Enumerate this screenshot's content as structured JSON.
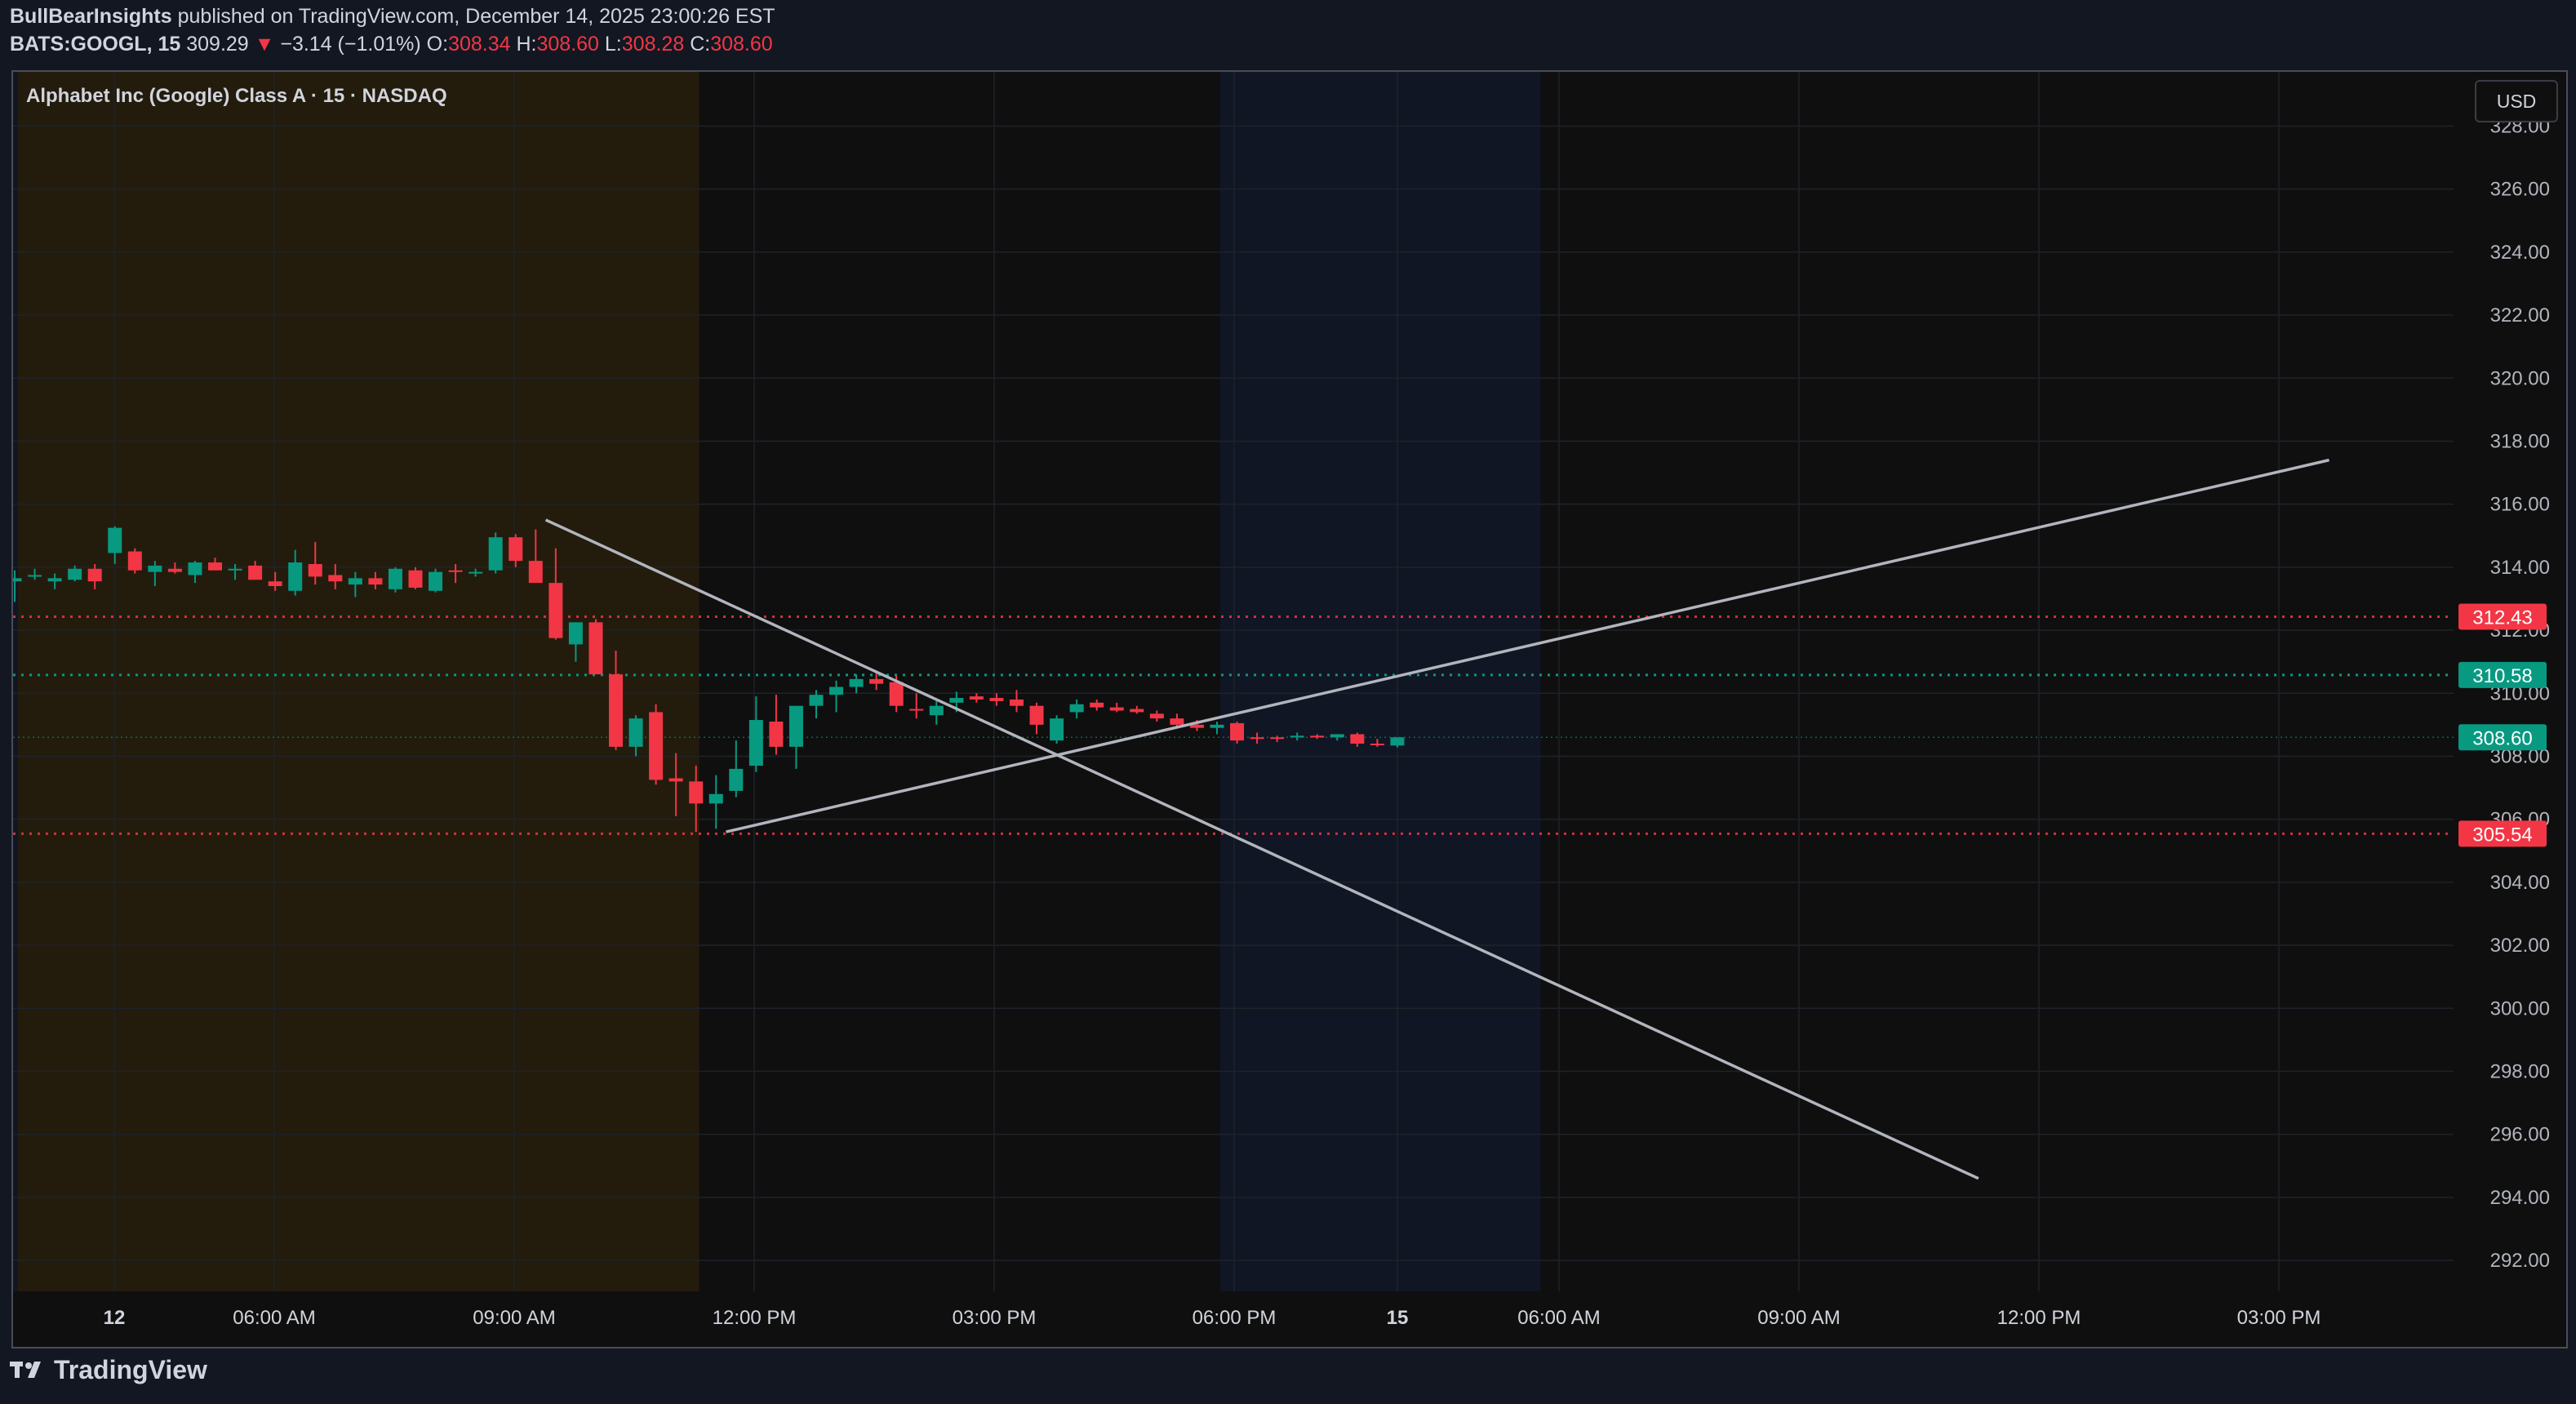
{
  "header": {
    "author": "BullBearInsights",
    "published": " published on TradingView.com, December 14, 2025 23:00:26 EST",
    "symbol": "BATS:GOOGL, 15",
    "last": "309.29",
    "arrow": "▼",
    "change": "−3.14 (−1.01%)",
    "o_label": "O:",
    "o_val": "308.34",
    "h_label": "H:",
    "h_val": "308.60",
    "l_label": "L:",
    "l_val": "308.28",
    "c_label": "C:",
    "c_val": "308.60"
  },
  "chart": {
    "title": "Alphabet Inc (Google) Class A · 15 · NASDAQ",
    "currency_button": "USD"
  },
  "footer": {
    "brand": "TradingView"
  },
  "colors": {
    "up": "#089981",
    "down": "#f23645",
    "line": "#b2b5be",
    "premarket": "#f7a600",
    "postmarket": "#2962ff"
  },
  "chart_data": {
    "type": "candlestick",
    "interval": "15",
    "ylim": [
      291,
      329
    ],
    "y_ticks": [
      "292.00",
      "294.00",
      "296.00",
      "298.00",
      "300.00",
      "302.00",
      "304.00",
      "306.00",
      "308.00",
      "310.00",
      "312.00",
      "314.00",
      "316.00",
      "318.00",
      "320.00",
      "322.00",
      "324.00",
      "326.00",
      "328.00"
    ],
    "x_ticks": [
      "12",
      "06:00 AM",
      "09:00 AM",
      "12:00 PM",
      "03:00 PM",
      "06:00 PM",
      "15",
      "06:00 AM",
      "09:00 AM",
      "12:00 PM",
      "03:00 PM"
    ],
    "price_labels": [
      {
        "text": "312.43",
        "value": 312.43,
        "color": "#f23645",
        "style": "red-dotted"
      },
      {
        "text": "310.58",
        "value": 310.58,
        "color": "#089981",
        "style": "teal-dotted"
      },
      {
        "text": "308.60",
        "value": 308.6,
        "color": "#089981",
        "style": "current"
      },
      {
        "text": "305.54",
        "value": 305.54,
        "color": "#f23645",
        "style": "red-dotted"
      }
    ],
    "sessions": [
      {
        "name": "postmarket",
        "from": "00:00",
        "to": "01:00"
      },
      {
        "name": "premarket",
        "from": "01:00",
        "to": "09:30"
      },
      {
        "name": "postmarket",
        "from": "16:00",
        "to": "20:00"
      }
    ],
    "candles": [
      {
        "o": 313.55,
        "h": 313.9,
        "l": 312.9,
        "c": 313.65
      },
      {
        "o": 313.7,
        "h": 313.95,
        "l": 313.6,
        "c": 313.75
      },
      {
        "o": 313.55,
        "h": 313.8,
        "l": 313.3,
        "c": 313.65
      },
      {
        "o": 313.6,
        "h": 314.05,
        "l": 313.55,
        "c": 313.95
      },
      {
        "o": 313.95,
        "h": 314.1,
        "l": 313.3,
        "c": 313.55
      },
      {
        "o": 314.45,
        "h": 315.3,
        "l": 314.1,
        "c": 315.25
      },
      {
        "o": 314.5,
        "h": 314.6,
        "l": 313.8,
        "c": 313.9
      },
      {
        "o": 313.85,
        "h": 314.2,
        "l": 313.4,
        "c": 314.05
      },
      {
        "o": 313.95,
        "h": 314.15,
        "l": 313.8,
        "c": 313.85
      },
      {
        "o": 313.75,
        "h": 314.2,
        "l": 313.5,
        "c": 314.15
      },
      {
        "o": 314.15,
        "h": 314.3,
        "l": 313.9,
        "c": 313.9
      },
      {
        "o": 313.9,
        "h": 314.1,
        "l": 313.6,
        "c": 313.95
      },
      {
        "o": 314.05,
        "h": 314.2,
        "l": 313.7,
        "c": 313.6
      },
      {
        "o": 313.55,
        "h": 313.85,
        "l": 313.25,
        "c": 313.4
      },
      {
        "o": 313.25,
        "h": 314.55,
        "l": 313.1,
        "c": 314.15
      },
      {
        "o": 314.1,
        "h": 314.8,
        "l": 313.45,
        "c": 313.7
      },
      {
        "o": 313.75,
        "h": 314.1,
        "l": 313.3,
        "c": 313.55
      },
      {
        "o": 313.45,
        "h": 313.85,
        "l": 313.05,
        "c": 313.65
      },
      {
        "o": 313.65,
        "h": 313.85,
        "l": 313.3,
        "c": 313.45
      },
      {
        "o": 313.3,
        "h": 314.0,
        "l": 313.2,
        "c": 313.95
      },
      {
        "o": 313.9,
        "h": 314.0,
        "l": 313.3,
        "c": 313.35
      },
      {
        "o": 313.25,
        "h": 313.95,
        "l": 313.2,
        "c": 313.85
      },
      {
        "o": 313.9,
        "h": 314.1,
        "l": 313.5,
        "c": 313.85
      },
      {
        "o": 313.8,
        "h": 313.95,
        "l": 313.7,
        "c": 313.85
      },
      {
        "o": 313.9,
        "h": 315.1,
        "l": 313.8,
        "c": 314.95
      },
      {
        "o": 314.95,
        "h": 315.05,
        "l": 314.0,
        "c": 314.2
      },
      {
        "o": 314.2,
        "h": 315.2,
        "l": 313.6,
        "c": 313.5
      },
      {
        "o": 313.5,
        "h": 314.6,
        "l": 311.7,
        "c": 311.75
      },
      {
        "o": 311.55,
        "h": 312.25,
        "l": 311.0,
        "c": 312.25
      },
      {
        "o": 312.25,
        "h": 312.35,
        "l": 310.95,
        "c": 310.6
      },
      {
        "o": 310.6,
        "h": 311.35,
        "l": 308.2,
        "c": 308.3
      },
      {
        "o": 308.3,
        "h": 309.3,
        "l": 308.0,
        "c": 309.2
      },
      {
        "o": 309.4,
        "h": 309.65,
        "l": 307.1,
        "c": 307.25
      },
      {
        "o": 307.3,
        "h": 308.1,
        "l": 306.1,
        "c": 307.2
      },
      {
        "o": 307.2,
        "h": 307.7,
        "l": 305.6,
        "c": 306.5
      },
      {
        "o": 306.5,
        "h": 307.4,
        "l": 305.7,
        "c": 306.8
      },
      {
        "o": 306.9,
        "h": 308.5,
        "l": 306.7,
        "c": 307.6
      },
      {
        "o": 307.7,
        "h": 309.9,
        "l": 307.5,
        "c": 309.15
      },
      {
        "o": 309.1,
        "h": 309.95,
        "l": 308.05,
        "c": 308.3
      },
      {
        "o": 308.3,
        "h": 309.6,
        "l": 307.6,
        "c": 309.6
      },
      {
        "o": 309.6,
        "h": 310.1,
        "l": 309.2,
        "c": 309.95
      },
      {
        "o": 309.95,
        "h": 310.4,
        "l": 309.4,
        "c": 310.2
      },
      {
        "o": 310.2,
        "h": 310.6,
        "l": 310.0,
        "c": 310.45
      },
      {
        "o": 310.45,
        "h": 310.7,
        "l": 310.1,
        "c": 310.3
      },
      {
        "o": 310.35,
        "h": 310.55,
        "l": 309.4,
        "c": 309.6
      },
      {
        "o": 309.5,
        "h": 310.0,
        "l": 309.2,
        "c": 309.45
      },
      {
        "o": 309.3,
        "h": 309.75,
        "l": 309.0,
        "c": 309.6
      },
      {
        "o": 309.7,
        "h": 310.05,
        "l": 309.4,
        "c": 309.85
      },
      {
        "o": 309.9,
        "h": 310.0,
        "l": 309.7,
        "c": 309.8
      },
      {
        "o": 309.85,
        "h": 310.0,
        "l": 309.6,
        "c": 309.75
      },
      {
        "o": 309.8,
        "h": 310.1,
        "l": 309.4,
        "c": 309.6
      },
      {
        "o": 309.6,
        "h": 309.7,
        "l": 308.7,
        "c": 309.0
      },
      {
        "o": 308.5,
        "h": 309.3,
        "l": 308.4,
        "c": 309.2
      },
      {
        "o": 309.4,
        "h": 309.8,
        "l": 309.2,
        "c": 309.65
      },
      {
        "o": 309.7,
        "h": 309.8,
        "l": 309.45,
        "c": 309.55
      },
      {
        "o": 309.55,
        "h": 309.7,
        "l": 309.4,
        "c": 309.45
      },
      {
        "o": 309.5,
        "h": 309.6,
        "l": 309.35,
        "c": 309.4
      },
      {
        "o": 309.35,
        "h": 309.45,
        "l": 309.1,
        "c": 309.2
      },
      {
        "o": 309.2,
        "h": 309.35,
        "l": 308.9,
        "c": 309.0
      },
      {
        "o": 309.0,
        "h": 309.15,
        "l": 308.8,
        "c": 308.9
      },
      {
        "o": 308.9,
        "h": 309.1,
        "l": 308.7,
        "c": 309.0
      },
      {
        "o": 309.05,
        "h": 309.1,
        "l": 308.4,
        "c": 308.5
      },
      {
        "o": 308.6,
        "h": 308.75,
        "l": 308.4,
        "c": 308.55
      },
      {
        "o": 308.6,
        "h": 308.65,
        "l": 308.45,
        "c": 308.55
      },
      {
        "o": 308.6,
        "h": 308.75,
        "l": 308.5,
        "c": 308.65
      },
      {
        "o": 308.65,
        "h": 308.7,
        "l": 308.55,
        "c": 308.6
      },
      {
        "o": 308.6,
        "h": 308.7,
        "l": 308.5,
        "c": 308.7
      },
      {
        "o": 308.7,
        "h": 308.75,
        "l": 308.3,
        "c": 308.4
      },
      {
        "o": 308.4,
        "h": 308.55,
        "l": 308.3,
        "c": 308.35
      },
      {
        "o": 308.34,
        "h": 308.6,
        "l": 308.28,
        "c": 308.6
      }
    ],
    "trendlines": [
      {
        "name": "falling-trendline",
        "p1": {
          "bar": 26.5,
          "price": 315.5
        },
        "p2": {
          "bar": 98,
          "price": 294.6
        }
      },
      {
        "name": "rising-trendline",
        "p1": {
          "bar": 35.5,
          "price": 305.6
        },
        "p2": {
          "bar": 115.5,
          "price": 317.4
        }
      }
    ]
  }
}
